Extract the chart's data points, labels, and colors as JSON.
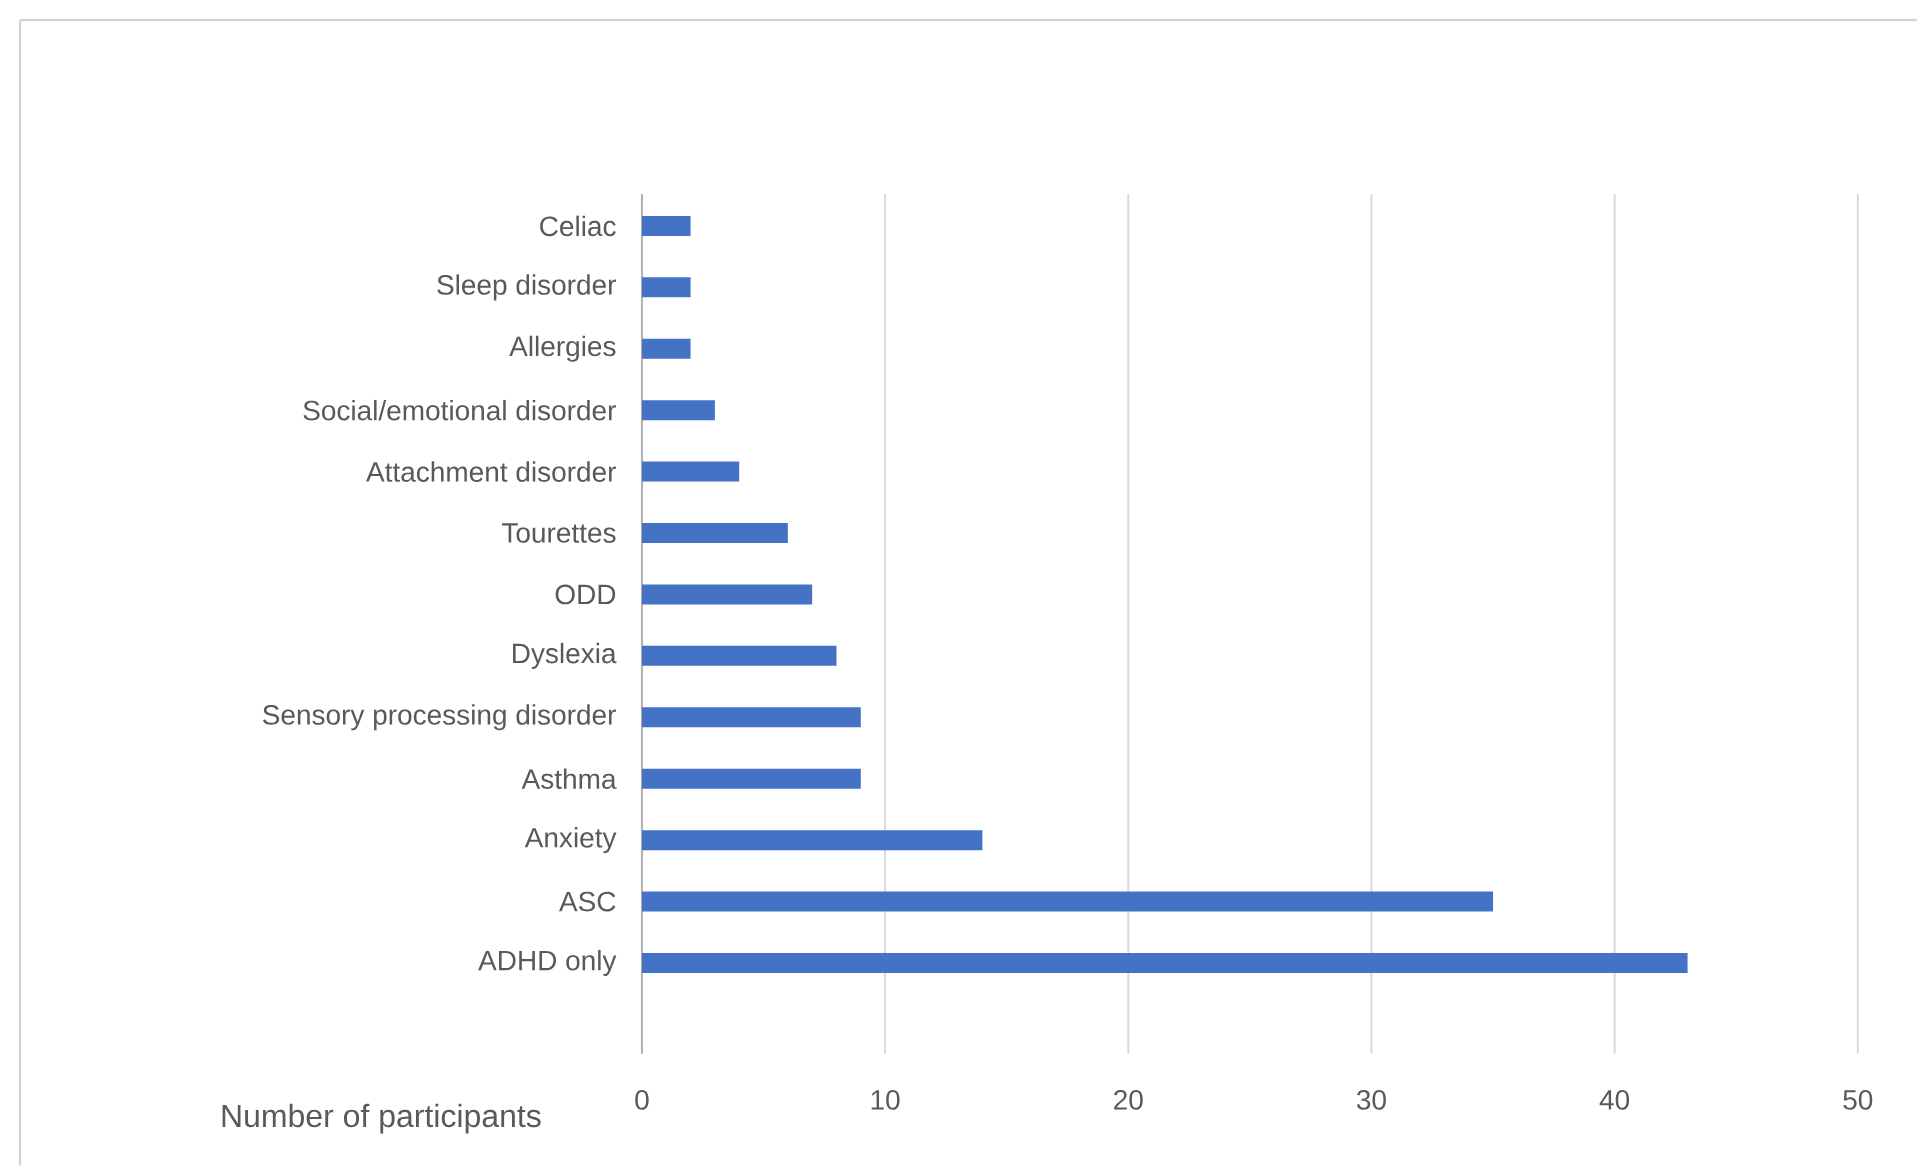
{
  "chart_data": {
    "type": "bar",
    "orientation": "horizontal",
    "categories": [
      "Celiac",
      "Sleep disorder",
      "Allergies",
      "Social/emotional disorder",
      "Attachment disorder",
      "Tourettes",
      "ODD",
      "Dyslexia",
      "Sensory processing disorder",
      "Asthma",
      "Anxiety",
      "ASC",
      "ADHD only"
    ],
    "values": [
      2,
      2,
      2,
      3,
      4,
      6,
      7,
      8,
      9,
      9,
      14,
      35,
      43
    ],
    "color": "#4472c4",
    "xlabel": "Number of participants",
    "xlim": [
      0,
      50
    ],
    "xticks": [
      0,
      10,
      20,
      30,
      40,
      50
    ],
    "grid": "x"
  }
}
